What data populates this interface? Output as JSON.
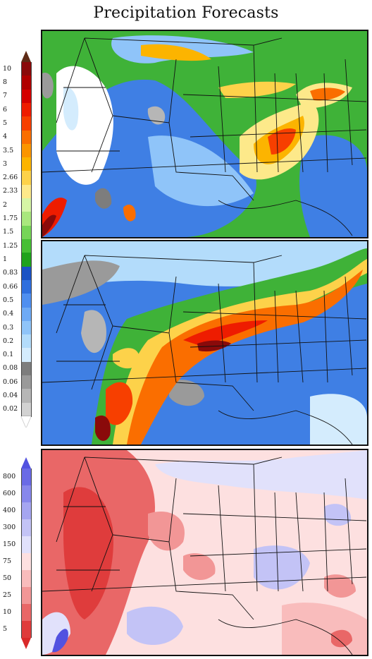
{
  "title": "Precipitation Forecasts",
  "precip_scale": {
    "labels": [
      "10",
      "8",
      "7",
      "6",
      "5",
      "4",
      "3.5",
      "3",
      "2.66",
      "2.33",
      "2",
      "1.75",
      "1.5",
      "1.25",
      "1",
      "0.83",
      "0.66",
      "0.5",
      "0.4",
      "0.3",
      "0.2",
      "0.1",
      "0.08",
      "0.06",
      "0.04",
      "0.02"
    ],
    "colors": [
      "#8a0a0a",
      "#b00000",
      "#d40000",
      "#ee1c00",
      "#f73f00",
      "#fa6e00",
      "#fb9500",
      "#fcb400",
      "#fdd24a",
      "#fde98a",
      "#d6f5a5",
      "#a9e87d",
      "#76d557",
      "#46bf35",
      "#1fa21c",
      "#1a52c4",
      "#2f6fde",
      "#4f8ff0",
      "#6eaaf5",
      "#8fc4f9",
      "#b3dcfb",
      "#d4ecfd",
      "#7d7d7d",
      "#9a9a9a",
      "#b6b6b6",
      "#d2d2d2"
    ],
    "top_arrow_color": "#5e2b16",
    "bottom_arrow_color": "#ffffff"
  },
  "percent_scale": {
    "labels": [
      "800",
      "600",
      "400",
      "300",
      "150",
      "75",
      "50",
      "25",
      "10",
      "5"
    ],
    "colors": [
      "#6a6ae6",
      "#8787ec",
      "#a5a5f1",
      "#c3c3f6",
      "#e1e1fb",
      "#fde0e0",
      "#f9bcbc",
      "#f29696",
      "#e96767",
      "#df3c3c"
    ],
    "top_arrow_color": "#5252e0",
    "bottom_arrow_color": "#d92a2a"
  }
}
